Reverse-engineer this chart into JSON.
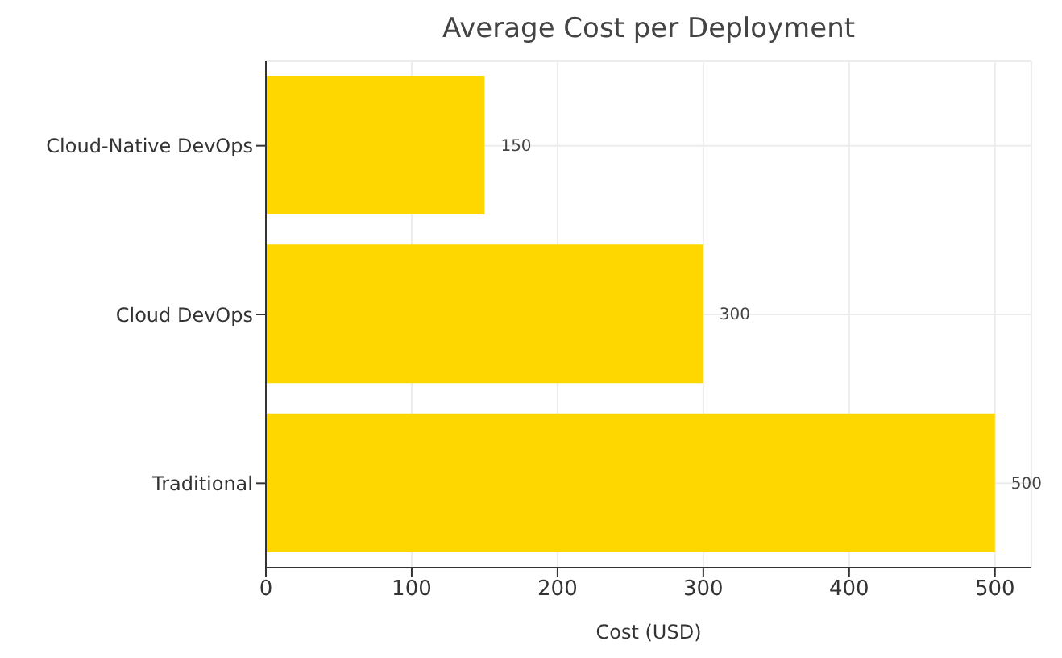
{
  "chart_data": {
    "type": "bar",
    "orientation": "horizontal",
    "title": "Average Cost per Deployment",
    "xlabel": "Cost (USD)",
    "categories": [
      "Cloud-Native DevOps",
      "Cloud DevOps",
      "Traditional"
    ],
    "values": [
      150,
      300,
      500
    ],
    "color": "#ffd700",
    "xlim": [
      0,
      525
    ],
    "xticks": [
      0,
      100,
      200,
      300,
      400,
      500
    ],
    "grid": true,
    "data_labels": true
  }
}
